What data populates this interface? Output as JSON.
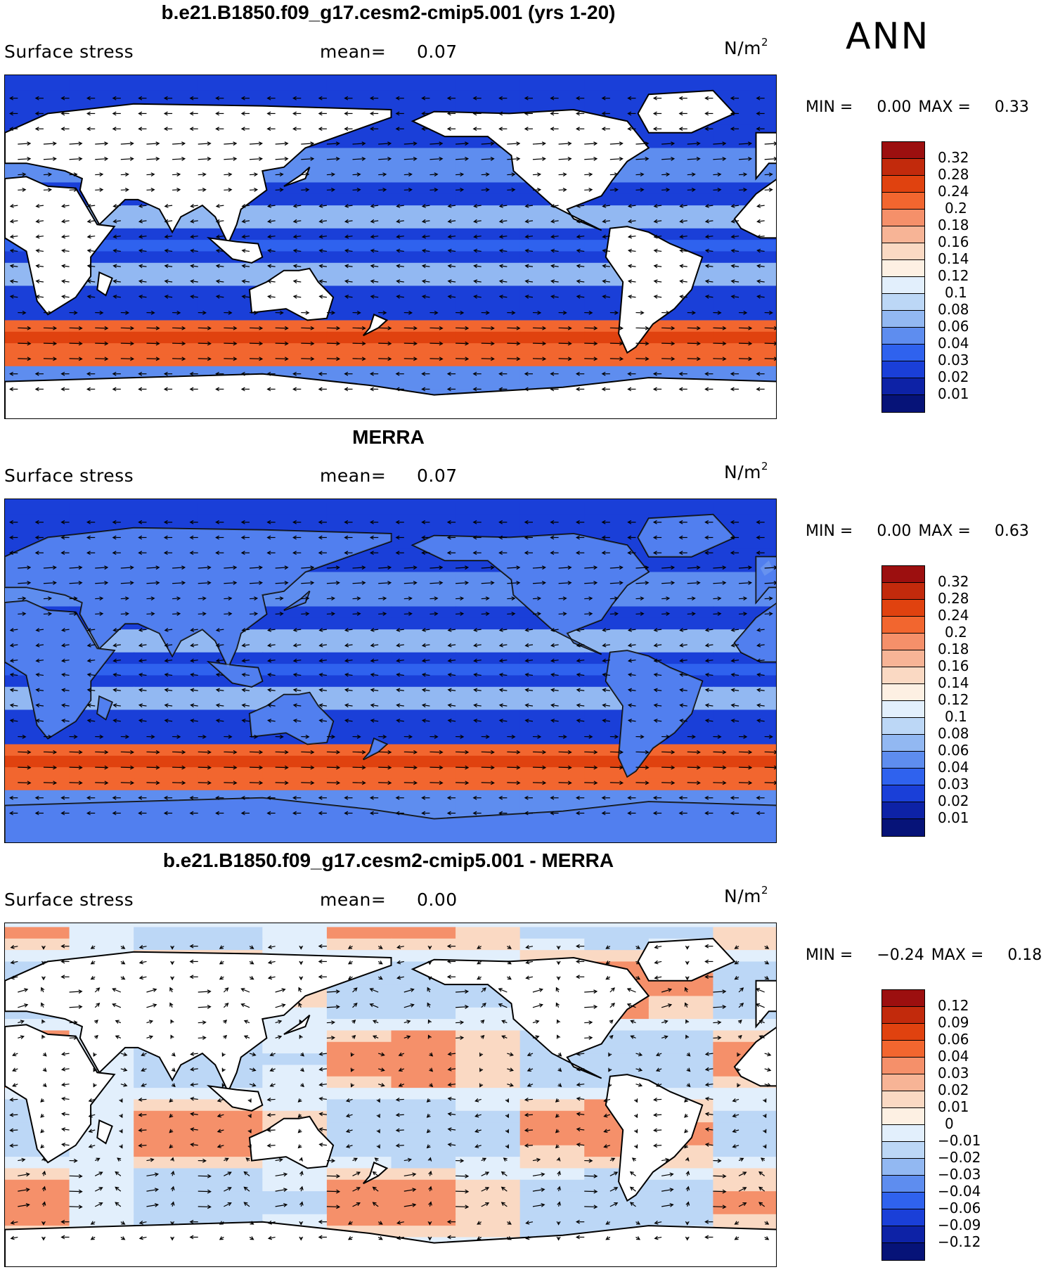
{
  "season_label": "ANN",
  "panels": [
    {
      "id": "model",
      "title": "b.e21.B1850.f09_g17.cesm2-cmip5.001 (yrs 1-20)",
      "variable": "Surface stress",
      "mean_label": "mean=",
      "mean_value": "0.07",
      "units_base": "N/m",
      "units_exp": "2",
      "min_label": "MIN =",
      "min_value": "0.00",
      "max_label": "MAX =",
      "max_value": "0.33",
      "colorbar_levels": [
        "0.32",
        "0.28",
        "0.24",
        "0.2",
        "0.18",
        "0.16",
        "0.14",
        "0.12",
        "0.1",
        "0.08",
        "0.06",
        "0.04",
        "0.03",
        "0.02",
        "0.01"
      ],
      "colorbar_colors": [
        "#9c0f0f",
        "#c22a0c",
        "#e0420f",
        "#f2662f",
        "#f5906a",
        "#f7b496",
        "#fad9c3",
        "#fdf0e3",
        "#e2effc",
        "#bcd7f6",
        "#92b8f2",
        "#5e8def",
        "#2f62ee",
        "#1a3fd8",
        "#0d22a6",
        "#061378"
      ],
      "map_kind": "magnitude"
    },
    {
      "id": "obs",
      "title": "MERRA",
      "variable": "Surface stress",
      "mean_label": "mean=",
      "mean_value": "0.07",
      "units_base": "N/m",
      "units_exp": "2",
      "min_label": "MIN =",
      "min_value": "0.00",
      "max_label": "MAX =",
      "max_value": "0.63",
      "colorbar_levels": [
        "0.32",
        "0.28",
        "0.24",
        "0.2",
        "0.18",
        "0.16",
        "0.14",
        "0.12",
        "0.1",
        "0.08",
        "0.06",
        "0.04",
        "0.03",
        "0.02",
        "0.01"
      ],
      "colorbar_colors": [
        "#9c0f0f",
        "#c22a0c",
        "#e0420f",
        "#f2662f",
        "#f5906a",
        "#f7b496",
        "#fad9c3",
        "#fdf0e3",
        "#e2effc",
        "#bcd7f6",
        "#92b8f2",
        "#5e8def",
        "#2f62ee",
        "#1a3fd8",
        "#0d22a6",
        "#061378"
      ],
      "map_kind": "magnitude_land"
    },
    {
      "id": "diff",
      "title": "b.e21.B1850.f09_g17.cesm2-cmip5.001 - MERRA",
      "variable": "Surface stress",
      "mean_label": "mean=",
      "mean_value": "0.00",
      "units_base": "N/m",
      "units_exp": "2",
      "min_label": "MIN =",
      "min_value": "−0.24",
      "max_label": "MAX =",
      "max_value": "0.18",
      "colorbar_levels": [
        "0.12",
        "0.09",
        "0.06",
        "0.04",
        "0.03",
        "0.02",
        "0.01",
        "0",
        "−0.01",
        "−0.02",
        "−0.03",
        "−0.04",
        "−0.06",
        "−0.09",
        "−0.12"
      ],
      "colorbar_colors": [
        "#9c0f0f",
        "#c22a0c",
        "#e0420f",
        "#f2662f",
        "#f5906a",
        "#f7b496",
        "#fad9c3",
        "#fdf0e3",
        "#e2effc",
        "#bcd7f6",
        "#92b8f2",
        "#5e8def",
        "#2f62ee",
        "#1a3fd8",
        "#0d22a6",
        "#061378"
      ],
      "map_kind": "difference"
    }
  ]
}
